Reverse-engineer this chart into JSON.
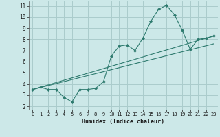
{
  "xlabel": "Humidex (Indice chaleur)",
  "bg_color": "#cce8e8",
  "grid_color": "#aacccc",
  "line_color": "#2d7a6e",
  "xlim": [
    -0.5,
    23.5
  ],
  "ylim": [
    1.7,
    11.4
  ],
  "xticks": [
    0,
    1,
    2,
    3,
    4,
    5,
    6,
    7,
    8,
    9,
    10,
    11,
    12,
    13,
    14,
    15,
    16,
    17,
    18,
    19,
    20,
    21,
    22,
    23
  ],
  "yticks": [
    2,
    3,
    4,
    5,
    6,
    7,
    8,
    9,
    10,
    11
  ],
  "series1_x": [
    0,
    1,
    2,
    3,
    4,
    5,
    6,
    7,
    8,
    9,
    10,
    11,
    12,
    13,
    14,
    15,
    16,
    17,
    18,
    19,
    20,
    21,
    22,
    23
  ],
  "series1_y": [
    3.5,
    3.7,
    3.5,
    3.5,
    2.8,
    2.4,
    3.5,
    3.5,
    3.6,
    4.2,
    6.5,
    7.4,
    7.5,
    7.0,
    8.1,
    9.6,
    10.7,
    11.05,
    10.2,
    8.8,
    7.1,
    8.0,
    8.1,
    8.3
  ],
  "series2_x": [
    0,
    23
  ],
  "series2_y": [
    3.5,
    7.6
  ],
  "series3_x": [
    0,
    23
  ],
  "series3_y": [
    3.5,
    8.3
  ]
}
